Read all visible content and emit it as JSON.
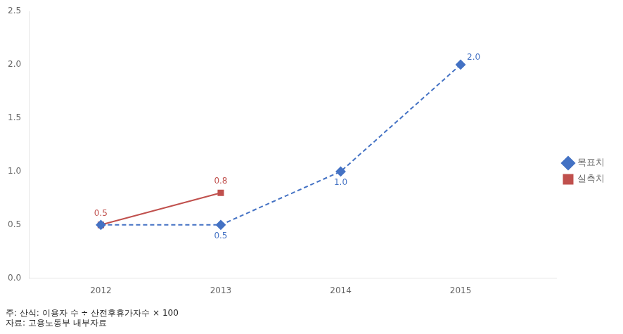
{
  "chart_data": {
    "type": "line",
    "annotations": [
      "주: 산식: 이용자 수 ÷ 산전후휴가자수 × 100",
      "자료: 고용노동부 내부자료"
    ],
    "x": [
      2012,
      2013,
      2014,
      2015
    ],
    "series": [
      {
        "name": "목표치",
        "color": "#4472C4",
        "marker": "diamond",
        "line_style": "dashed",
        "values": [
          0.5,
          0.5,
          1.0,
          2.0
        ],
        "value_labels": [
          null,
          "0.5",
          "1.0",
          "2.0"
        ]
      },
      {
        "name": "실측치",
        "color": "#C0504D",
        "marker": "square",
        "line_style": "solid",
        "values": [
          0.5,
          0.8,
          null,
          null
        ],
        "value_labels": [
          "0.5",
          "0.8",
          null,
          null
        ]
      }
    ],
    "xlim": [
      2011.4,
      2015.8
    ],
    "xticks": [
      2012,
      2013,
      2014,
      2015
    ],
    "ylim": [
      0.0,
      2.5
    ],
    "yticks": [
      {
        "value": 0.0,
        "label": "0.0"
      },
      0.5,
      {
        "value": 1.0,
        "label": "1.0"
      },
      1.5,
      {
        "value": 2.0,
        "label": "2.0"
      },
      2.5
    ],
    "grid": false,
    "legend": "right",
    "data_labels": true
  }
}
